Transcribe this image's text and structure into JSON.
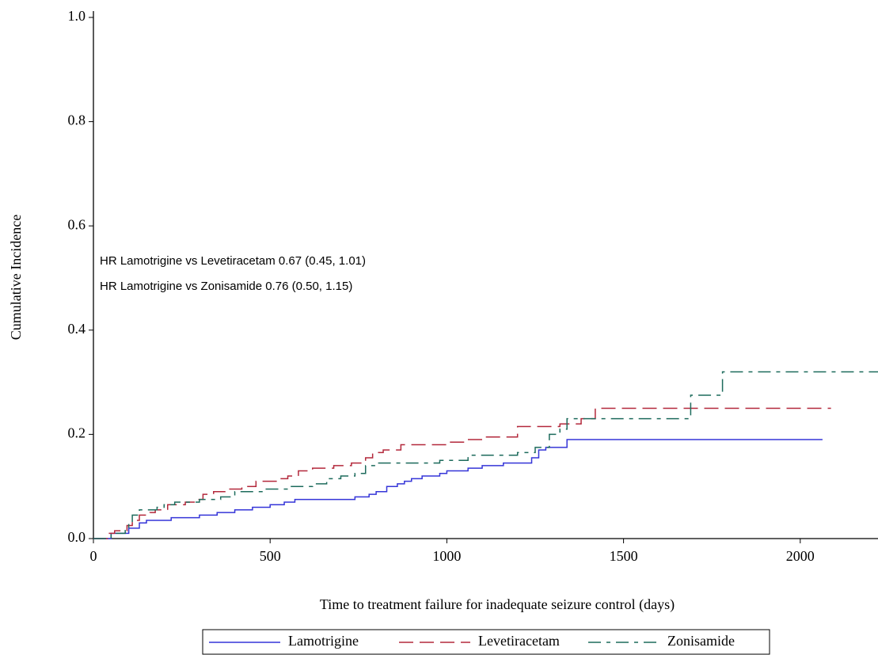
{
  "chart_data": {
    "type": "step",
    "xlabel": "Time to treatment failure for inadequate seizure control (days)",
    "ylabel": "Cumulative Incidence",
    "annotations": [
      "HR Lamotrigine vs Levetiracetam 0.67 (0.45, 1.01)",
      "HR Lamotrigine vs Zonisamide 0.76 (0.50, 1.15)"
    ],
    "xlim": [
      0,
      2220
    ],
    "ylim": [
      0,
      1
    ],
    "xticks": [
      0,
      500,
      1000,
      1500,
      2000
    ],
    "yticks": [
      {
        "value": 0,
        "label": "0.0"
      },
      {
        "value": 0.2,
        "label": "0.2"
      },
      {
        "value": 0.4,
        "label": "0.4"
      },
      {
        "value": 0.6,
        "label": "0.6"
      },
      {
        "value": 0.8,
        "label": "0.8"
      },
      {
        "value": 1,
        "label": "1.0"
      }
    ],
    "series": [
      {
        "name": "Lamotrigine",
        "color": "#3535d8",
        "dash": "solid",
        "x": [
          0,
          50,
          100,
          130,
          150,
          220,
          300,
          350,
          400,
          450,
          500,
          540,
          570,
          740,
          780,
          800,
          830,
          860,
          880,
          900,
          930,
          980,
          1000,
          1060,
          1100,
          1160,
          1240,
          1260,
          1280,
          1340,
          2063
        ],
        "values": [
          0,
          0.01,
          0.02,
          0.03,
          0.035,
          0.04,
          0.045,
          0.05,
          0.055,
          0.06,
          0.065,
          0.07,
          0.075,
          0.08,
          0.085,
          0.09,
          0.1,
          0.105,
          0.11,
          0.115,
          0.12,
          0.125,
          0.13,
          0.135,
          0.14,
          0.145,
          0.155,
          0.17,
          0.175,
          0.19,
          0.19
        ]
      },
      {
        "name": "Levetiracetam",
        "color": "#b3283b",
        "dash": "dashed",
        "x": [
          0,
          40,
          60,
          95,
          110,
          130,
          160,
          175,
          210,
          260,
          290,
          310,
          340,
          380,
          420,
          460,
          520,
          550,
          580,
          620,
          680,
          730,
          770,
          790,
          820,
          870,
          1000,
          1050,
          1100,
          1200,
          1320,
          1380,
          1420,
          2087
        ],
        "values": [
          0,
          0.01,
          0.015,
          0.025,
          0.035,
          0.045,
          0.05,
          0.055,
          0.065,
          0.07,
          0.075,
          0.085,
          0.09,
          0.095,
          0.1,
          0.11,
          0.115,
          0.12,
          0.13,
          0.135,
          0.14,
          0.145,
          0.155,
          0.165,
          0.17,
          0.18,
          0.185,
          0.19,
          0.195,
          0.215,
          0.22,
          0.23,
          0.25,
          0.25
        ]
      },
      {
        "name": "Zonisamide",
        "color": "#1d6b5c",
        "dash": "dashdot",
        "x": [
          0,
          50,
          90,
          100,
          110,
          130,
          180,
          200,
          230,
          300,
          360,
          400,
          480,
          560,
          620,
          660,
          700,
          740,
          770,
          800,
          980,
          1060,
          1200,
          1250,
          1290,
          1320,
          1340,
          1690,
          1780,
          2220
        ],
        "values": [
          0,
          0.01,
          0.02,
          0.03,
          0.045,
          0.055,
          0.06,
          0.065,
          0.07,
          0.075,
          0.08,
          0.09,
          0.095,
          0.1,
          0.105,
          0.115,
          0.12,
          0.125,
          0.14,
          0.145,
          0.15,
          0.16,
          0.165,
          0.175,
          0.2,
          0.21,
          0.23,
          0.275,
          0.32,
          0.32
        ]
      }
    ]
  }
}
